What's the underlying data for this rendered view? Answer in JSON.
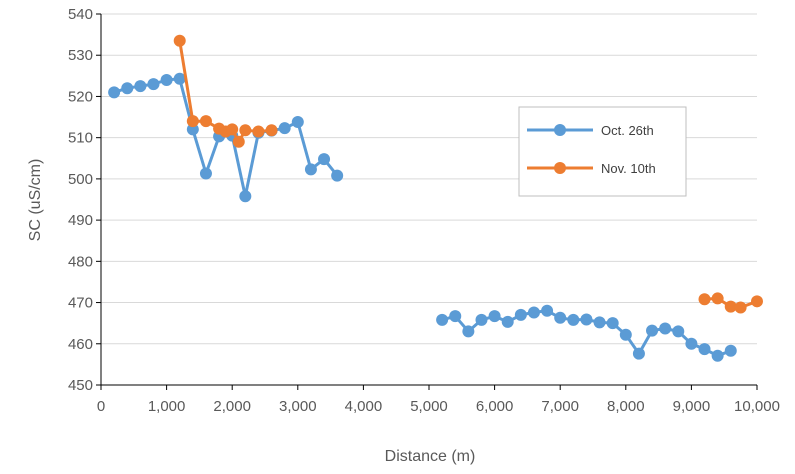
{
  "chart_data": {
    "type": "line",
    "title": "",
    "xlabel": "Distance (m)",
    "ylabel": "SC (uS/cm)",
    "xlim": [
      0,
      10000
    ],
    "ylim": [
      450,
      540
    ],
    "x_ticks": [
      0,
      1000,
      2000,
      3000,
      4000,
      5000,
      6000,
      7000,
      8000,
      9000,
      10000
    ],
    "x_tick_labels": [
      "0",
      "1,000",
      "2,000",
      "3,000",
      "4,000",
      "5,000",
      "6,000",
      "7,000",
      "8,000",
      "9,000",
      "10,000"
    ],
    "y_ticks": [
      450,
      460,
      470,
      480,
      490,
      500,
      510,
      520,
      530,
      540
    ],
    "y_tick_labels": [
      "450",
      "460",
      "470",
      "480",
      "490",
      "500",
      "510",
      "520",
      "530",
      "540"
    ],
    "grid": "horizontal",
    "legend_position": "right",
    "series": [
      {
        "name": "Oct. 26th",
        "color": "#5B9BD5",
        "segments": [
          [
            [
              200,
              521
            ],
            [
              400,
              522
            ],
            [
              600,
              522.5
            ],
            [
              800,
              523
            ],
            [
              1000,
              524
            ],
            [
              1200,
              524.3
            ],
            [
              1400,
              512
            ],
            [
              1600,
              501.3
            ],
            [
              1800,
              510.3
            ],
            [
              2000,
              510.5
            ],
            [
              2200,
              495.8
            ],
            [
              2400,
              511.2
            ],
            [
              2600,
              511.7
            ],
            [
              2800,
              512.3
            ],
            [
              3000,
              513.8
            ],
            [
              3200,
              502.3
            ],
            [
              3400,
              504.8
            ],
            [
              3600,
              500.8
            ]
          ],
          [
            [
              5200,
              465.8
            ],
            [
              5400,
              466.7
            ],
            [
              5600,
              463
            ],
            [
              5800,
              465.8
            ],
            [
              6000,
              466.7
            ],
            [
              6200,
              465.3
            ],
            [
              6400,
              467
            ],
            [
              6600,
              467.6
            ],
            [
              6800,
              468
            ],
            [
              7000,
              466.3
            ],
            [
              7200,
              465.8
            ],
            [
              7400,
              465.9
            ],
            [
              7600,
              465.2
            ],
            [
              7800,
              465
            ],
            [
              8000,
              462.2
            ],
            [
              8200,
              457.6
            ],
            [
              8400,
              463.2
            ],
            [
              8600,
              463.7
            ],
            [
              8800,
              463
            ],
            [
              9000,
              460
            ],
            [
              9200,
              458.7
            ],
            [
              9400,
              457.1
            ],
            [
              9600,
              458.3
            ]
          ]
        ]
      },
      {
        "name": "Nov. 10th",
        "color": "#ED7D31",
        "segments": [
          [
            [
              1200,
              533.5
            ],
            [
              1400,
              514
            ],
            [
              1600,
              514
            ],
            [
              1800,
              512.2
            ],
            [
              1900,
              511.5
            ],
            [
              2000,
              512
            ],
            [
              2100,
              509
            ],
            [
              2200,
              511.8
            ],
            [
              2400,
              511.5
            ],
            [
              2600,
              511.8
            ]
          ],
          [
            [
              9200,
              470.8
            ],
            [
              9400,
              471
            ],
            [
              9600,
              469
            ],
            [
              9750,
              468.8
            ],
            [
              10000,
              470.3
            ]
          ]
        ]
      }
    ]
  }
}
